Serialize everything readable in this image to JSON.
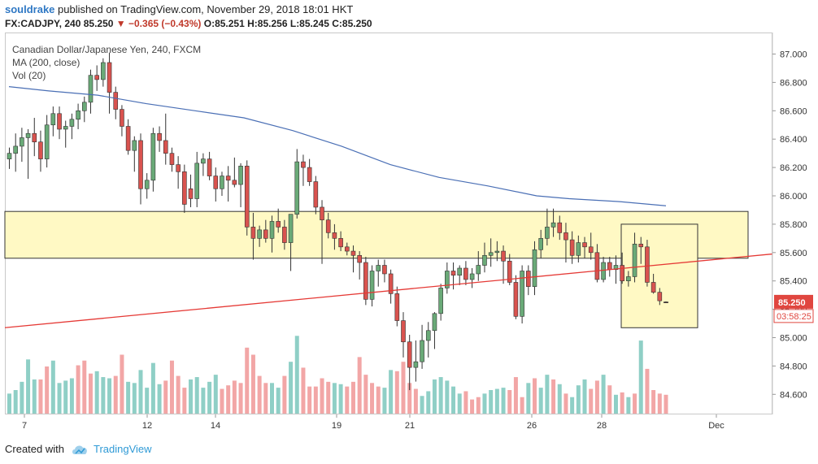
{
  "header": {
    "author": "souldrake",
    "published_text": "published on TradingView.com, November 29, 2018 18:01 HKT",
    "symbol": "FX:CADJPY, 240",
    "last": "85.250",
    "change": "−0.365 (−0.43%)",
    "open": "O:85.251",
    "high": "H:85.256",
    "low": "L:85.245",
    "close": "C:85.250"
  },
  "legend": {
    "title": "Canadian Dollar/Japanese Yen, 240, FXCM",
    "ma": "MA (200, close)",
    "vol": "Vol (20)"
  },
  "footer": {
    "created_with": "Created with",
    "brand": "TradingView"
  },
  "colors": {
    "up": "#6aaa78",
    "down": "#d9534f",
    "ma": "#4a6fb5",
    "trendline": "#e53935",
    "zone": "#fff9c4",
    "vol_up": "#8fcfc6",
    "vol_down": "#f2a6a6",
    "price_label": "#e0463f"
  },
  "chart_data": {
    "type": "candlestick",
    "title": "Canadian Dollar/Japanese Yen, 240, FXCM",
    "ylim": [
      84.45,
      87.1
    ],
    "y_ticks": [
      "87.000",
      "86.800",
      "86.600",
      "86.400",
      "86.200",
      "86.000",
      "85.800",
      "85.600",
      "85.400",
      "85.200",
      "85.000",
      "84.800",
      "84.600"
    ],
    "x_ticks": [
      "7",
      "12",
      "14",
      "19",
      "21",
      "26",
      "28",
      "Dec"
    ],
    "price_label": "85.250",
    "countdown_label": "03:58:25",
    "candles": [
      [
        86.26,
        86.34,
        86.19,
        86.3
      ],
      [
        86.3,
        86.44,
        86.17,
        86.35
      ],
      [
        86.35,
        86.48,
        86.24,
        86.41
      ],
      [
        86.41,
        86.47,
        86.12,
        86.44
      ],
      [
        86.44,
        86.55,
        86.28,
        86.38
      ],
      [
        86.38,
        86.46,
        86.17,
        86.26
      ],
      [
        86.26,
        86.57,
        86.2,
        86.5
      ],
      [
        86.5,
        86.63,
        86.42,
        86.58
      ],
      [
        86.58,
        86.63,
        86.4,
        86.47
      ],
      [
        86.47,
        86.53,
        86.34,
        86.49
      ],
      [
        86.49,
        86.58,
        86.4,
        86.54
      ],
      [
        86.54,
        86.65,
        86.47,
        86.6
      ],
      [
        86.6,
        86.7,
        86.52,
        86.66
      ],
      [
        86.66,
        86.89,
        86.58,
        86.85
      ],
      [
        86.85,
        86.92,
        86.74,
        86.82
      ],
      [
        86.82,
        86.97,
        86.77,
        86.94
      ],
      [
        86.94,
        87.01,
        86.58,
        86.73
      ],
      [
        86.73,
        86.77,
        86.54,
        86.61
      ],
      [
        86.61,
        86.64,
        86.42,
        86.49
      ],
      [
        86.49,
        86.54,
        86.29,
        86.32
      ],
      [
        86.32,
        86.42,
        86.17,
        86.39
      ],
      [
        86.39,
        86.44,
        85.94,
        86.05
      ],
      [
        86.05,
        86.16,
        85.98,
        86.11
      ],
      [
        86.11,
        86.48,
        86.03,
        86.44
      ],
      [
        86.44,
        86.49,
        86.31,
        86.39
      ],
      [
        86.39,
        86.58,
        86.22,
        86.3
      ],
      [
        86.3,
        86.34,
        86.17,
        86.22
      ],
      [
        86.22,
        86.28,
        86.05,
        86.17
      ],
      [
        86.17,
        86.22,
        85.88,
        85.94
      ],
      [
        86.05,
        86.15,
        85.92,
        85.98
      ],
      [
        85.98,
        86.31,
        85.92,
        86.23
      ],
      [
        86.23,
        86.3,
        86.14,
        86.26
      ],
      [
        86.26,
        86.31,
        86.11,
        86.14
      ],
      [
        86.14,
        86.2,
        85.96,
        86.05
      ],
      [
        86.05,
        86.17,
        86.0,
        86.14
      ],
      [
        86.14,
        86.21,
        85.96,
        86.11
      ],
      [
        86.11,
        86.27,
        86.06,
        86.08
      ],
      [
        86.08,
        86.23,
        85.92,
        86.21
      ],
      [
        86.21,
        86.25,
        85.72,
        85.78
      ],
      [
        85.78,
        85.88,
        85.55,
        85.7
      ],
      [
        85.7,
        85.79,
        85.64,
        85.76
      ],
      [
        85.76,
        85.83,
        85.67,
        85.7
      ],
      [
        85.7,
        85.86,
        85.6,
        85.82
      ],
      [
        85.82,
        85.91,
        85.74,
        85.78
      ],
      [
        85.78,
        85.83,
        85.62,
        85.67
      ],
      [
        85.67,
        85.87,
        85.47,
        85.87
      ],
      [
        85.87,
        86.33,
        85.84,
        86.24
      ],
      [
        86.24,
        86.29,
        86.07,
        86.2
      ],
      [
        86.2,
        86.26,
        86.07,
        86.1
      ],
      [
        86.1,
        86.14,
        85.87,
        85.92
      ],
      [
        85.92,
        85.97,
        85.52,
        85.83
      ],
      [
        85.83,
        85.88,
        85.7,
        85.74
      ],
      [
        85.74,
        85.8,
        85.62,
        85.7
      ],
      [
        85.7,
        85.75,
        85.61,
        85.64
      ],
      [
        85.64,
        85.67,
        85.58,
        85.61
      ],
      [
        85.61,
        85.65,
        85.46,
        85.58
      ],
      [
        85.58,
        85.61,
        85.41,
        85.53
      ],
      [
        85.53,
        85.57,
        85.23,
        85.27
      ],
      [
        85.27,
        85.51,
        85.22,
        85.47
      ],
      [
        85.47,
        85.55,
        85.36,
        85.51
      ],
      [
        85.51,
        85.55,
        85.39,
        85.45
      ],
      [
        85.45,
        85.48,
        85.24,
        85.31
      ],
      [
        85.31,
        85.36,
        85.08,
        85.12
      ],
      [
        85.12,
        85.18,
        84.86,
        84.97
      ],
      [
        84.97,
        85.02,
        84.63,
        84.79
      ],
      [
        84.79,
        84.98,
        84.69,
        84.83
      ],
      [
        84.83,
        85.09,
        84.78,
        84.98
      ],
      [
        84.98,
        85.11,
        84.86,
        85.05
      ],
      [
        85.05,
        85.18,
        84.92,
        85.17
      ],
      [
        85.17,
        85.38,
        85.12,
        85.35
      ],
      [
        85.35,
        85.53,
        85.31,
        85.47
      ],
      [
        85.47,
        85.53,
        85.34,
        85.44
      ],
      [
        85.44,
        85.51,
        85.37,
        85.49
      ],
      [
        85.49,
        85.54,
        85.37,
        85.41
      ],
      [
        85.41,
        85.49,
        85.35,
        85.45
      ],
      [
        85.45,
        85.61,
        85.4,
        85.51
      ],
      [
        85.51,
        85.67,
        85.46,
        85.58
      ],
      [
        85.58,
        85.7,
        85.5,
        85.6
      ],
      [
        85.6,
        85.68,
        85.54,
        85.61
      ],
      [
        85.61,
        85.65,
        85.38,
        85.54
      ],
      [
        85.54,
        85.59,
        85.37,
        85.39
      ],
      [
        85.39,
        85.44,
        85.13,
        85.15
      ],
      [
        85.15,
        85.51,
        85.1,
        85.47
      ],
      [
        85.47,
        85.51,
        85.3,
        85.36
      ],
      [
        85.36,
        85.68,
        85.3,
        85.62
      ],
      [
        85.62,
        85.76,
        85.56,
        85.7
      ],
      [
        85.7,
        85.91,
        85.65,
        85.78
      ],
      [
        85.78,
        85.91,
        85.71,
        85.81
      ],
      [
        85.81,
        85.86,
        85.69,
        85.74
      ],
      [
        85.74,
        85.81,
        85.53,
        85.69
      ],
      [
        85.69,
        85.75,
        85.52,
        85.58
      ],
      [
        85.58,
        85.72,
        85.53,
        85.67
      ],
      [
        85.67,
        85.71,
        85.56,
        85.64
      ],
      [
        85.64,
        85.74,
        85.55,
        85.6
      ],
      [
        85.6,
        85.66,
        85.39,
        85.41
      ],
      [
        85.41,
        85.57,
        85.39,
        85.53
      ],
      [
        85.53,
        85.57,
        85.43,
        85.48
      ],
      [
        85.48,
        85.58,
        85.38,
        85.51
      ],
      [
        85.51,
        85.6,
        85.38,
        85.4
      ],
      [
        85.4,
        85.47,
        85.36,
        85.43
      ],
      [
        85.43,
        85.74,
        85.39,
        85.66
      ],
      [
        85.66,
        85.71,
        85.52,
        85.64
      ],
      [
        85.64,
        85.69,
        85.36,
        85.39
      ],
      [
        85.39,
        85.45,
        85.31,
        85.32
      ],
      [
        85.32,
        85.35,
        85.23,
        85.26
      ],
      [
        85.251,
        85.256,
        85.245,
        85.25
      ]
    ],
    "volume": [
      [
        0.17,
        1
      ],
      [
        0.2,
        1
      ],
      [
        0.27,
        1
      ],
      [
        0.46,
        1
      ],
      [
        0.29,
        1
      ],
      [
        0.29,
        0
      ],
      [
        0.4,
        0
      ],
      [
        0.45,
        1
      ],
      [
        0.26,
        1
      ],
      [
        0.28,
        1
      ],
      [
        0.3,
        1
      ],
      [
        0.41,
        0
      ],
      [
        0.45,
        0
      ],
      [
        0.34,
        0
      ],
      [
        0.36,
        1
      ],
      [
        0.31,
        1
      ],
      [
        0.3,
        1
      ],
      [
        0.32,
        0
      ],
      [
        0.5,
        0
      ],
      [
        0.27,
        1
      ],
      [
        0.26,
        1
      ],
      [
        0.37,
        1
      ],
      [
        0.22,
        1
      ],
      [
        0.43,
        1
      ],
      [
        0.25,
        1
      ],
      [
        0.28,
        0
      ],
      [
        0.45,
        0
      ],
      [
        0.32,
        0
      ],
      [
        0.22,
        0
      ],
      [
        0.29,
        1
      ],
      [
        0.31,
        1
      ],
      [
        0.22,
        1
      ],
      [
        0.27,
        1
      ],
      [
        0.33,
        1
      ],
      [
        0.21,
        0
      ],
      [
        0.24,
        0
      ],
      [
        0.28,
        0
      ],
      [
        0.26,
        0
      ],
      [
        0.56,
        0
      ],
      [
        0.5,
        0
      ],
      [
        0.32,
        0
      ],
      [
        0.26,
        0
      ],
      [
        0.26,
        1
      ],
      [
        0.22,
        1
      ],
      [
        0.32,
        0
      ],
      [
        0.44,
        1
      ],
      [
        0.66,
        1
      ],
      [
        0.39,
        0
      ],
      [
        0.23,
        0
      ],
      [
        0.23,
        0
      ],
      [
        0.3,
        0
      ],
      [
        0.27,
        0
      ],
      [
        0.26,
        1
      ],
      [
        0.25,
        1
      ],
      [
        0.23,
        0
      ],
      [
        0.27,
        0
      ],
      [
        0.48,
        0
      ],
      [
        0.33,
        0
      ],
      [
        0.26,
        0
      ],
      [
        0.23,
        0
      ],
      [
        0.22,
        1
      ],
      [
        0.37,
        1
      ],
      [
        0.36,
        0
      ],
      [
        0.44,
        0
      ],
      [
        0.26,
        0
      ],
      [
        0.21,
        0
      ],
      [
        0.15,
        1
      ],
      [
        0.19,
        1
      ],
      [
        0.29,
        1
      ],
      [
        0.31,
        1
      ],
      [
        0.28,
        1
      ],
      [
        0.23,
        1
      ],
      [
        0.17,
        1
      ],
      [
        0.19,
        0
      ],
      [
        0.12,
        0
      ],
      [
        0.14,
        0
      ],
      [
        0.17,
        1
      ],
      [
        0.2,
        1
      ],
      [
        0.21,
        1
      ],
      [
        0.22,
        1
      ],
      [
        0.2,
        0
      ],
      [
        0.31,
        0
      ],
      [
        0.14,
        0
      ],
      [
        0.26,
        1
      ],
      [
        0.3,
        0
      ],
      [
        0.22,
        1
      ],
      [
        0.33,
        1
      ],
      [
        0.29,
        0
      ],
      [
        0.25,
        1
      ],
      [
        0.17,
        0
      ],
      [
        0.14,
        1
      ],
      [
        0.24,
        1
      ],
      [
        0.29,
        1
      ],
      [
        0.21,
        0
      ],
      [
        0.28,
        0
      ],
      [
        0.33,
        1
      ],
      [
        0.24,
        0
      ],
      [
        0.16,
        1
      ],
      [
        0.18,
        0
      ],
      [
        0.14,
        1
      ],
      [
        0.17,
        0
      ],
      [
        0.62,
        1
      ],
      [
        0.38,
        0
      ],
      [
        0.2,
        0
      ],
      [
        0.17,
        0
      ],
      [
        0.16,
        0
      ]
    ]
  }
}
